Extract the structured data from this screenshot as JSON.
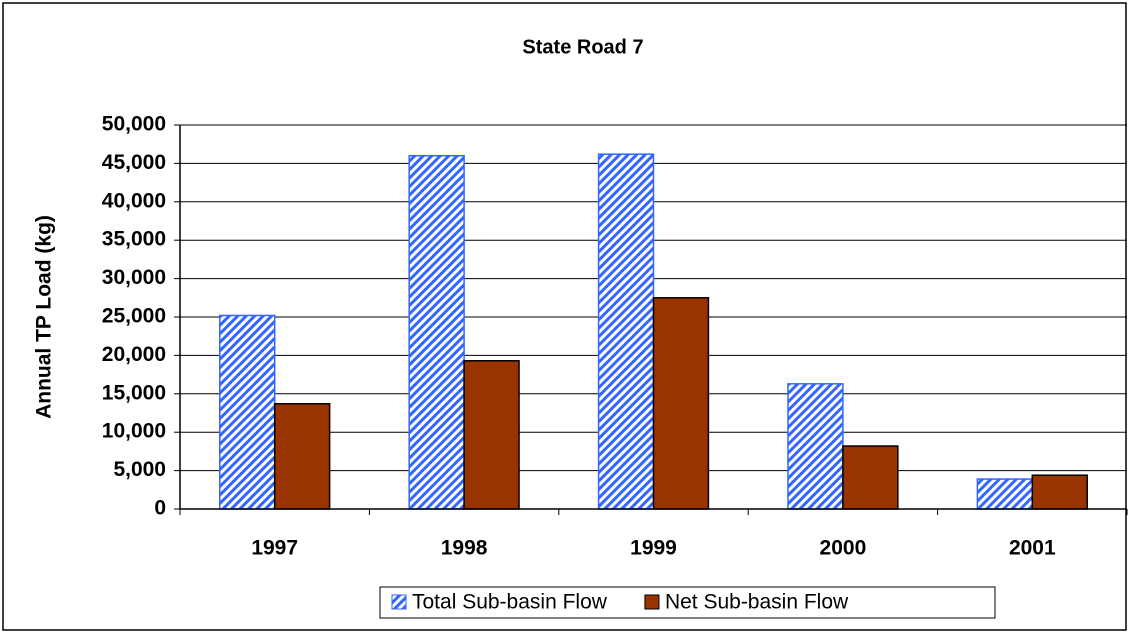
{
  "chart_data": {
    "type": "bar",
    "title": "State Road 7",
    "y_label": "Annual TP Load (kg)",
    "categories": [
      "1997",
      "1998",
      "1999",
      "2000",
      "2001"
    ],
    "series": [
      {
        "name": "Total Sub-basin Flow",
        "color": "#3366ff",
        "pattern": "hatch",
        "values": [
          25200,
          46000,
          46200,
          16300,
          3900
        ]
      },
      {
        "name": "Net Sub-basin Flow",
        "color": "#993300",
        "values": [
          13700,
          19300,
          27500,
          8200,
          4400
        ]
      }
    ],
    "ylim": [
      0,
      50000
    ],
    "yticks": [
      0,
      {
        "value": 5000,
        "label": "5,000"
      },
      {
        "value": 10000,
        "label": "10,000"
      },
      {
        "value": 15000,
        "label": "15,000"
      },
      {
        "value": 20000,
        "label": "20,000"
      },
      {
        "value": 25000,
        "label": "25,000"
      },
      {
        "value": 30000,
        "label": "30,000"
      },
      {
        "value": 35000,
        "label": "35,000"
      },
      {
        "value": 40000,
        "label": "40,000"
      },
      {
        "value": 45000,
        "label": "45,000"
      },
      {
        "value": 50000,
        "label": "50,000"
      }
    ],
    "grid": true,
    "legend": "bottom"
  }
}
